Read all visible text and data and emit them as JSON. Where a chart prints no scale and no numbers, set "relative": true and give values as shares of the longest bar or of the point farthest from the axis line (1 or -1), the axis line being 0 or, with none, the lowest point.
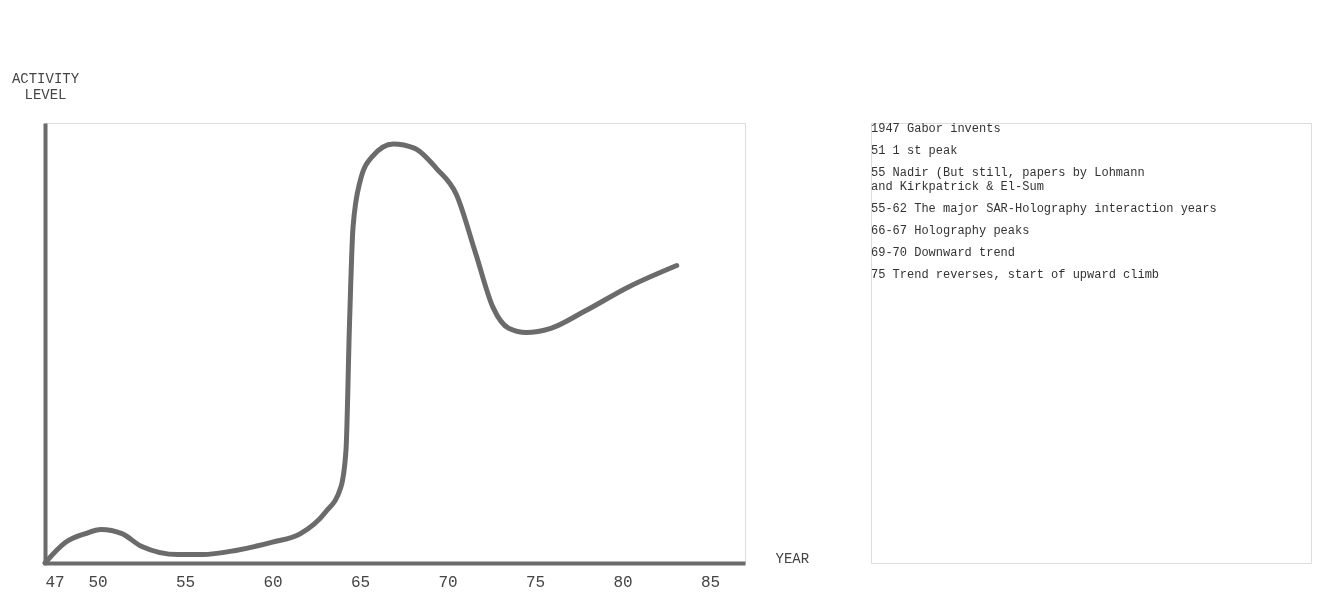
{
  "chart_data": {
    "type": "line",
    "relative": true,
    "xlabel": "YEAR",
    "ylabel": "ACTIVITY LEVEL",
    "xlim": [
      47,
      87
    ],
    "xticks": [
      47,
      50,
      55,
      60,
      65,
      70,
      75,
      80,
      85
    ],
    "grid": false,
    "series": [
      {
        "color": "#6b6b6b",
        "x": [
          47,
          48.2,
          49.3,
          50.2,
          51.4,
          52.5,
          54.6,
          56.0,
          57.9,
          60.0,
          61.6,
          63.0,
          63.9,
          64.2,
          64.4,
          64.6,
          65.0,
          65.7,
          66.9,
          68.1,
          69.4,
          70.5,
          71.6,
          72.6,
          73.5,
          74.5,
          75.9,
          77.8,
          80.4,
          83.1
        ],
        "values": [
          0,
          0.05,
          0.07,
          0.08,
          0.07,
          0.04,
          0.02,
          0.02,
          0.03,
          0.05,
          0.07,
          0.12,
          0.18,
          0.27,
          0.57,
          0.8,
          0.91,
          0.97,
          1.0,
          0.99,
          0.94,
          0.88,
          0.74,
          0.61,
          0.56,
          0.55,
          0.56,
          0.6,
          0.66,
          0.71
        ]
      }
    ],
    "annotations": [
      "1947  Gabor invents",
      "  51  1 st peak",
      "  55  Nadir (But still, papers by Lohmann\n              and Kirkpatrick & El-Sum",
      "  55-62 The major SAR-Holography interaction years",
      "  66-67 Holography peaks",
      "  69-70 Downward trend",
      "  75  Trend reverses, start of upward climb"
    ]
  }
}
